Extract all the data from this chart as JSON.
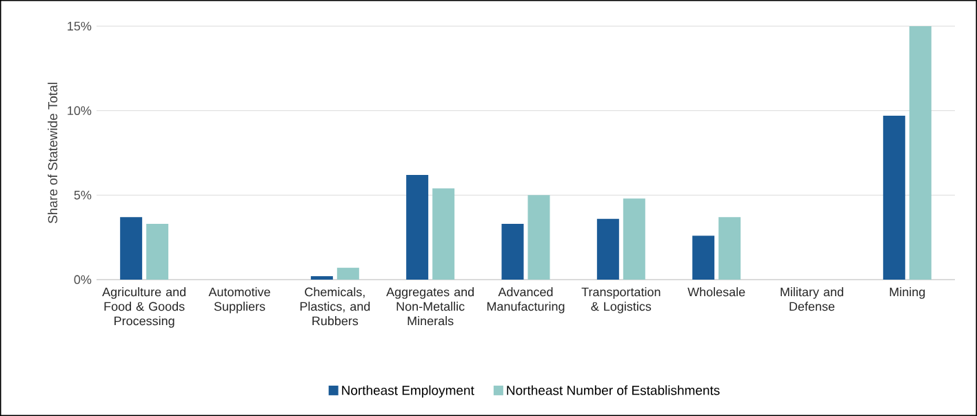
{
  "chart_data": {
    "type": "bar",
    "ylabel": "Share of Statewide Total",
    "categories": [
      "Agriculture and Food & Goods Processing",
      "Automotive Suppliers",
      "Chemicals, Plastics, and Rubbers",
      "Aggregates and Non-Metallic Minerals",
      "Advanced Manufacturing",
      "Transportation & Logistics",
      "Wholesale",
      "Military and Defense",
      "Mining"
    ],
    "series": [
      {
        "name": "Northeast Employment",
        "color": "#1a5a96",
        "values": [
          3.7,
          0,
          0.2,
          6.2,
          3.3,
          3.6,
          2.6,
          0,
          9.7
        ]
      },
      {
        "name": "Northeast Number of Establishments",
        "color": "#93cac7",
        "values": [
          3.3,
          0,
          0.7,
          5.4,
          5.0,
          4.8,
          3.7,
          0,
          15.0
        ]
      }
    ],
    "ylim": [
      0,
      15
    ],
    "yticks": [
      {
        "value": 0,
        "label": "0%"
      },
      {
        "value": 5,
        "label": "5%"
      },
      {
        "value": 10,
        "label": "10%"
      },
      {
        "value": 15,
        "label": "15%"
      }
    ],
    "grid": "y",
    "legend": "bottom"
  }
}
